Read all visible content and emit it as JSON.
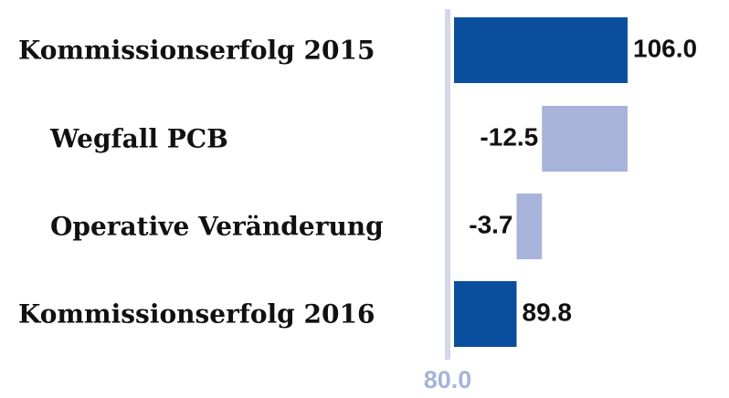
{
  "chart_data": {
    "type": "waterfall",
    "categories": [
      "Kommissionserfolg 2015",
      "Wegfall PCB",
      "Operative Veränderung",
      "Kommissionserfolg 2016"
    ],
    "values": [
      106,
      -12.5,
      -3.7,
      89.8
    ],
    "value_labels": [
      "106.0",
      "-12.5",
      "-3.7",
      "89.8"
    ],
    "measure": [
      "total",
      "relative",
      "relative",
      "total"
    ],
    "colors": [
      "#0a4f9e",
      "#a7b3d9",
      "#a7b3d9",
      "#0a4f9e"
    ],
    "xlim": [
      80,
      106
    ],
    "xticks": [
      {
        "value": 80,
        "label": "80.0"
      }
    ]
  }
}
